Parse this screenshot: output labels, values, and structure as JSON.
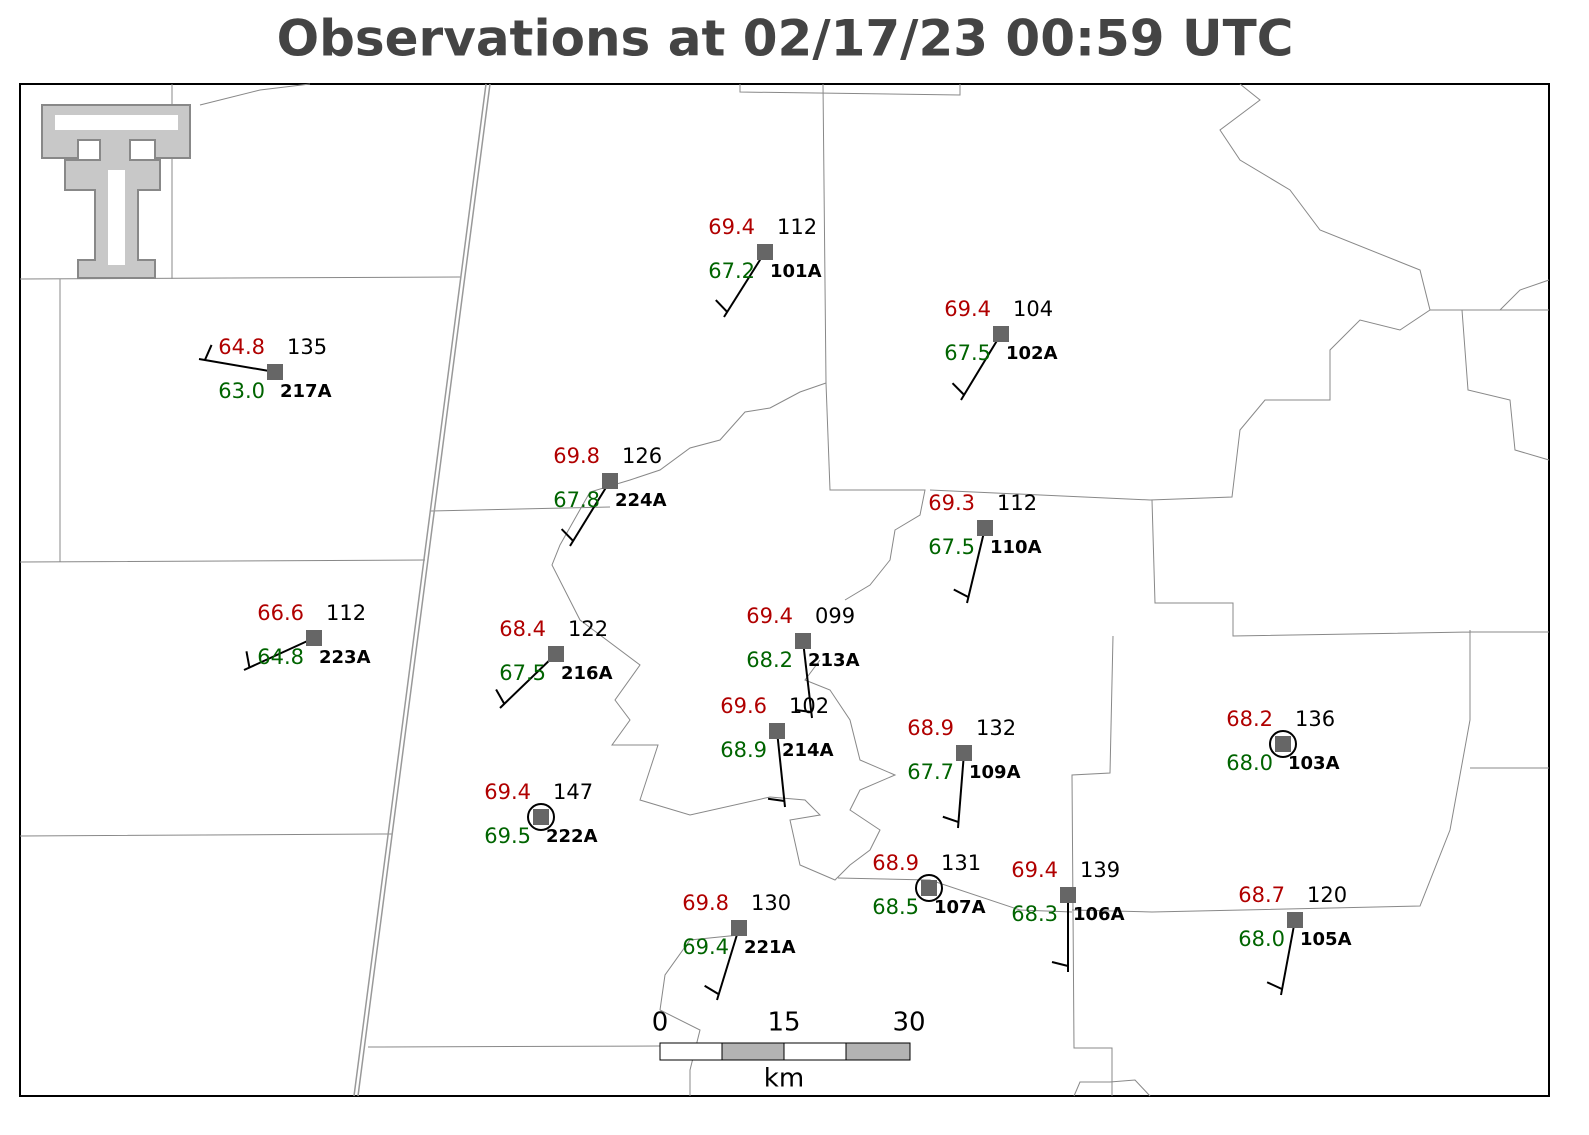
{
  "header": {
    "title": "Observations at 02/17/23 00:59 UTC"
  },
  "stations": [
    {
      "id": "101A",
      "temperature": "69.4",
      "dewpoint": "67.2",
      "pressure": "112"
    },
    {
      "id": "102A",
      "temperature": "69.4",
      "dewpoint": "67.5",
      "pressure": "104"
    },
    {
      "id": "217A",
      "temperature": "64.8",
      "dewpoint": "63.0",
      "pressure": "135"
    },
    {
      "id": "224A",
      "temperature": "69.8",
      "dewpoint": "67.8",
      "pressure": "126"
    },
    {
      "id": "110A",
      "temperature": "69.3",
      "dewpoint": "67.5",
      "pressure": "112"
    },
    {
      "id": "223A",
      "temperature": "66.6",
      "dewpoint": "64.8",
      "pressure": "112"
    },
    {
      "id": "216A",
      "temperature": "68.4",
      "dewpoint": "67.5",
      "pressure": "122"
    },
    {
      "id": "213A",
      "temperature": "69.4",
      "dewpoint": "68.2",
      "pressure": "099"
    },
    {
      "id": "214A",
      "temperature": "69.6",
      "dewpoint": "68.9",
      "pressure": "102"
    },
    {
      "id": "109A",
      "temperature": "68.9",
      "dewpoint": "67.7",
      "pressure": "132"
    },
    {
      "id": "103A",
      "temperature": "68.2",
      "dewpoint": "68.0",
      "pressure": "136"
    },
    {
      "id": "222A",
      "temperature": "69.4",
      "dewpoint": "69.5",
      "pressure": "147"
    },
    {
      "id": "107A",
      "temperature": "68.9",
      "dewpoint": "68.5",
      "pressure": "131"
    },
    {
      "id": "106A",
      "temperature": "69.4",
      "dewpoint": "68.3",
      "pressure": "139"
    },
    {
      "id": "221A",
      "temperature": "69.8",
      "dewpoint": "69.4",
      "pressure": "130"
    },
    {
      "id": "105A",
      "temperature": "68.7",
      "dewpoint": "68.0",
      "pressure": "120"
    }
  ],
  "scale_bar": {
    "labels": [
      "0",
      "15",
      "30"
    ],
    "unit": "km"
  }
}
